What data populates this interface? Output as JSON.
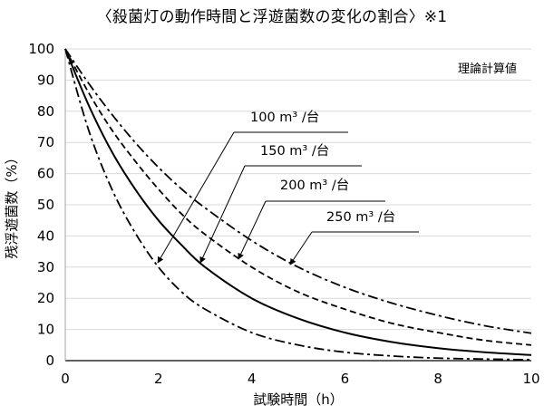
{
  "chart_data": {
    "type": "line",
    "title": "〈殺菌灯の動作時間と浮遊菌数の変化の割合〉※1",
    "xlabel": "試験時間（h）",
    "ylabel": "残浮遊菌数（%）",
    "xlim": [
      0,
      10
    ],
    "ylim": [
      0,
      100
    ],
    "xticks": [
      0,
      2,
      4,
      6,
      8,
      10
    ],
    "yticks": [
      0,
      10,
      20,
      30,
      40,
      50,
      60,
      70,
      80,
      90,
      100
    ],
    "grid": "horizontal",
    "note": "理論計算値",
    "series": [
      {
        "name": "100 m³ /台",
        "dash": "dashdot",
        "x": [
          0,
          0.5,
          1,
          1.5,
          2,
          2.5,
          3,
          4,
          5,
          6,
          7,
          8,
          9,
          10
        ],
        "values": [
          100,
          74,
          55,
          41,
          30,
          22,
          16.5,
          9,
          5,
          2.7,
          1.5,
          0.8,
          0.5,
          0.3
        ]
      },
      {
        "name": "150 m³ /台",
        "dash": "solid",
        "x": [
          0,
          0.5,
          1,
          1.5,
          2,
          2.5,
          3,
          4,
          5,
          6,
          7,
          8,
          9,
          10
        ],
        "values": [
          100,
          82,
          67,
          55,
          45,
          37,
          30,
          20,
          13.5,
          9,
          6,
          4,
          2.7,
          1.8
        ]
      },
      {
        "name": "200 m³ /台",
        "dash": "dashed",
        "x": [
          0,
          0.5,
          1,
          1.5,
          2,
          2.5,
          3,
          4,
          5,
          6,
          7,
          8,
          9,
          10
        ],
        "values": [
          100,
          86,
          74,
          64,
          55,
          47,
          40.5,
          30,
          22,
          16.5,
          12,
          9,
          6.5,
          5
        ]
      },
      {
        "name": "250 m³ /台",
        "dash": "dashdot",
        "x": [
          0,
          0.5,
          1,
          1.5,
          2,
          2.5,
          3,
          4,
          5,
          6,
          7,
          8,
          9,
          10
        ],
        "values": [
          100,
          89,
          79,
          70,
          62,
          55,
          49,
          38.5,
          30,
          23.5,
          18.5,
          14.5,
          11.2,
          8.8
        ]
      }
    ]
  }
}
